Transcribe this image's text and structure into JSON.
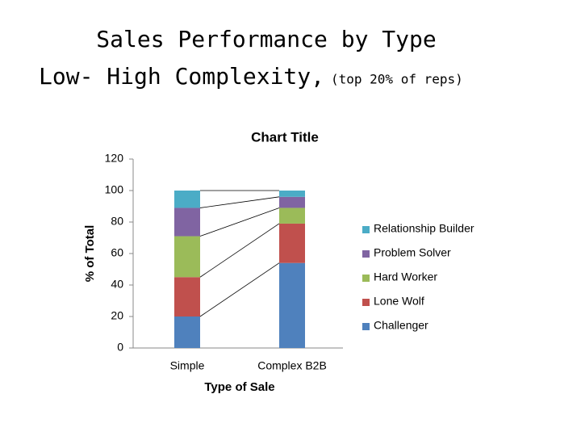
{
  "slide": {
    "title": "Sales Performance by Type",
    "subtitle": "Low- High Complexity,",
    "note": "(top 20% of reps)"
  },
  "chart_data": {
    "type": "stacked_bar",
    "title": "Chart Title",
    "x_label": "Type of Sale",
    "y_label": "% of Total",
    "categories": [
      "Simple",
      "Complex B2B"
    ],
    "series": [
      {
        "name": "Challenger",
        "color": "#4f81bd",
        "values": [
          20,
          54
        ]
      },
      {
        "name": "Lone Wolf",
        "color": "#c0504d",
        "values": [
          25,
          25
        ]
      },
      {
        "name": "Hard Worker",
        "color": "#9bbb59",
        "values": [
          26,
          10
        ]
      },
      {
        "name": "Problem Solver",
        "color": "#8064a2",
        "values": [
          18,
          7
        ]
      },
      {
        "name": "Relationship Builder",
        "color": "#4bacc6",
        "values": [
          11,
          4
        ]
      }
    ],
    "ylim": [
      0,
      120
    ],
    "yticks": [
      0,
      20,
      40,
      60,
      80,
      100,
      120
    ],
    "grid": false,
    "legend": "right",
    "series_lines": true
  }
}
